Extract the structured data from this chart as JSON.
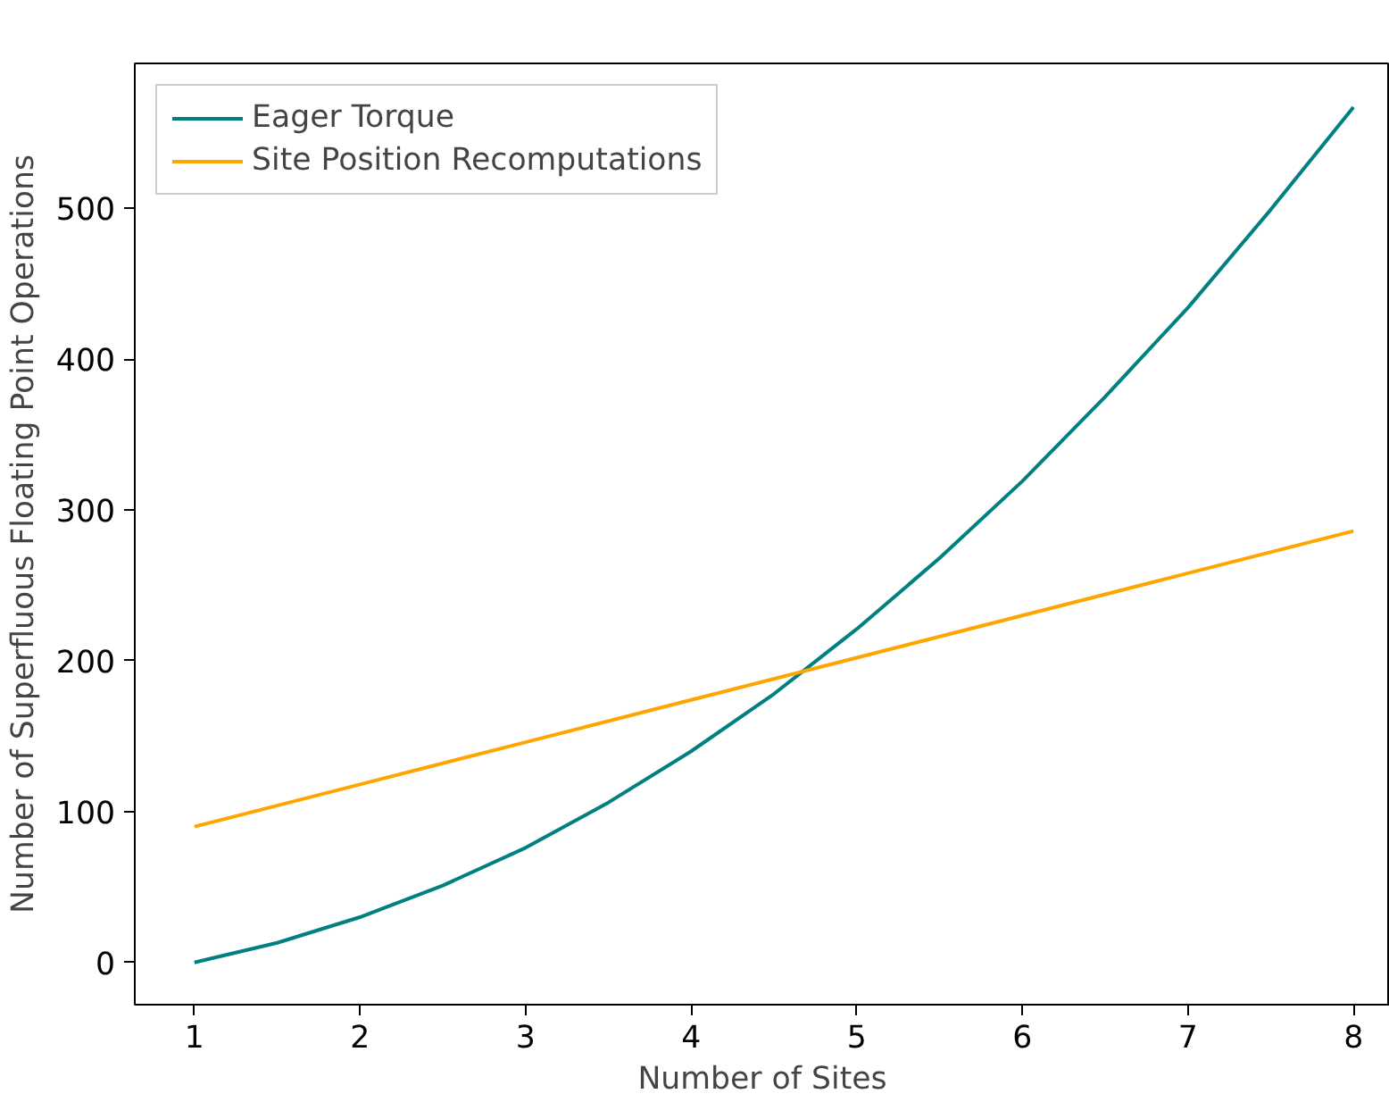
{
  "chart_data": {
    "type": "line",
    "xlabel": "Number of Sites",
    "ylabel": "Number of Superfluous Floating Point Operations",
    "xlim": [
      0.64,
      8.22
    ],
    "ylim": [
      -28,
      596
    ],
    "xticks": [
      1,
      2,
      3,
      4,
      5,
      6,
      7,
      8
    ],
    "yticks": [
      0,
      100,
      200,
      300,
      400,
      500
    ],
    "legend": "top left",
    "grid": false,
    "series": [
      {
        "name": "Eager Torque",
        "color": "#008080",
        "x": [
          1,
          1.5,
          2,
          2.5,
          3,
          3.5,
          4,
          4.5,
          5,
          5.5,
          6,
          6.5,
          7,
          7.5,
          8
        ],
        "values": [
          0,
          13,
          30,
          51,
          76,
          106,
          140,
          178,
          221,
          268,
          319,
          375,
          434,
          499,
          567
        ]
      },
      {
        "name": "Site Position Recomputations",
        "color": "#ffa500",
        "x": [
          1,
          2,
          3,
          4,
          5,
          6,
          7,
          8
        ],
        "values": [
          90,
          118,
          146,
          174,
          202,
          230,
          258,
          286
        ]
      }
    ]
  }
}
